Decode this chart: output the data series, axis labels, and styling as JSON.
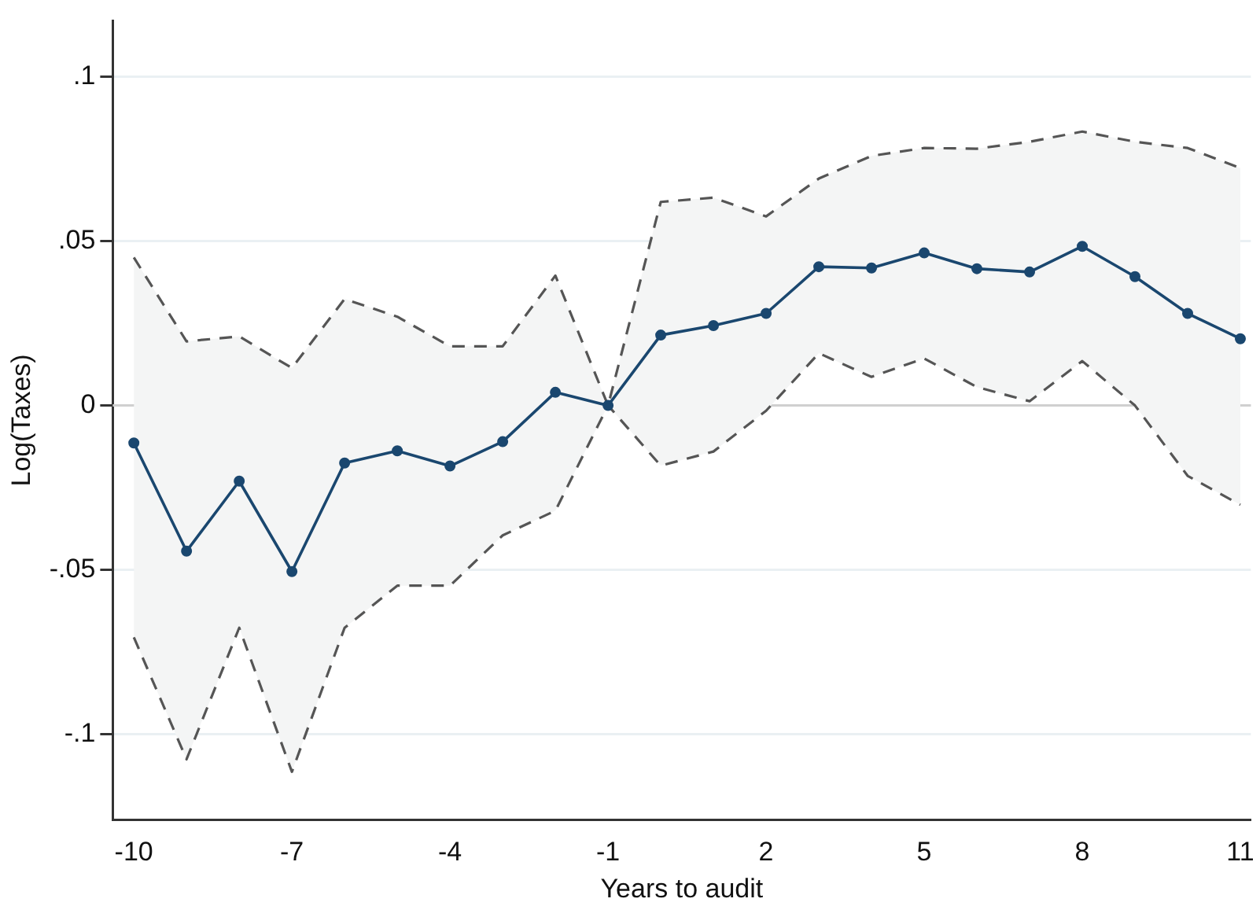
{
  "chart_data": {
    "type": "line",
    "xlabel": "Years to audit",
    "ylabel": "Log(Taxes)",
    "x": [
      -10,
      -9,
      -8,
      -7,
      -6,
      -5,
      -4,
      -3,
      -2,
      -1,
      0,
      1,
      2,
      3,
      4,
      5,
      6,
      7,
      8,
      9,
      10,
      11
    ],
    "series": [
      {
        "color": "#1a476f",
        "values": [
          -0.0114,
          -0.0443,
          -0.023,
          -0.0505,
          -0.0175,
          -0.0138,
          -0.0184,
          -0.011,
          0.004,
          0,
          0.0214,
          0.0243,
          0.028,
          0.0422,
          0.0418,
          0.0464,
          0.0416,
          0.0406,
          0.0484,
          0.0392,
          0.028,
          0.0203
        ],
        "upper": [
          0.045,
          0.0195,
          0.021,
          0.0114,
          0.0324,
          0.027,
          0.018,
          0.018,
          0.0395,
          0,
          0.0619,
          0.0632,
          0.0575,
          0.069,
          0.0759,
          0.0783,
          0.0781,
          0.0802,
          0.0833,
          0.0802,
          0.0783,
          0.0722
        ],
        "lower": [
          -0.0705,
          -0.1076,
          -0.0676,
          -0.1114,
          -0.0676,
          -0.0548,
          -0.0548,
          -0.0395,
          -0.032,
          0,
          -0.0183,
          -0.014,
          -0.0016,
          0.0159,
          0.0087,
          0.0143,
          0.0056,
          0.0013,
          0.0135,
          0,
          -0.0214,
          -0.0302
        ]
      },
      {
        "color": "#555555",
        "line_style": "dashed",
        "marker": "none",
        "values": [
          0.045,
          0.0195,
          0.021,
          0.0114,
          0.0324,
          0.027,
          0.018,
          0.018,
          0.0395,
          0,
          0.0619,
          0.0632,
          0.0575,
          0.069,
          0.0759,
          0.0783,
          0.0781,
          0.0802,
          0.0833,
          0.0802,
          0.0783,
          0.0722
        ]
      },
      {
        "color": "#555555",
        "line_style": "dashed",
        "marker": "none",
        "values": [
          -0.0705,
          -0.1076,
          -0.0676,
          -0.1114,
          -0.0676,
          -0.0548,
          -0.0548,
          -0.0395,
          -0.032,
          0,
          -0.0183,
          -0.014,
          -0.0016,
          0.0159,
          0.0087,
          0.0143,
          0.0056,
          0.0013,
          0.0135,
          0,
          -0.0214,
          -0.0302
        ]
      }
    ],
    "xlim": [
      -10.4,
      11.2
    ],
    "xticks": [
      -10,
      -7,
      -4,
      -1,
      2,
      5,
      8,
      11
    ],
    "ylim": [
      -0.126,
      0.117
    ],
    "yticks": [
      {
        "value": -0.1,
        "label": "-.1"
      },
      {
        "value": -0.05,
        "label": "-.05"
      },
      0,
      {
        "value": 0.05,
        "label": ".05"
      },
      {
        "value": 0.1,
        "label": ".1"
      }
    ],
    "ref_lines": [
      {
        "axis": "y",
        "value": 0,
        "color": "#d0d0d0"
      }
    ],
    "grid": "y",
    "marker": "circle",
    "line_style": "solid",
    "legend": false
  }
}
